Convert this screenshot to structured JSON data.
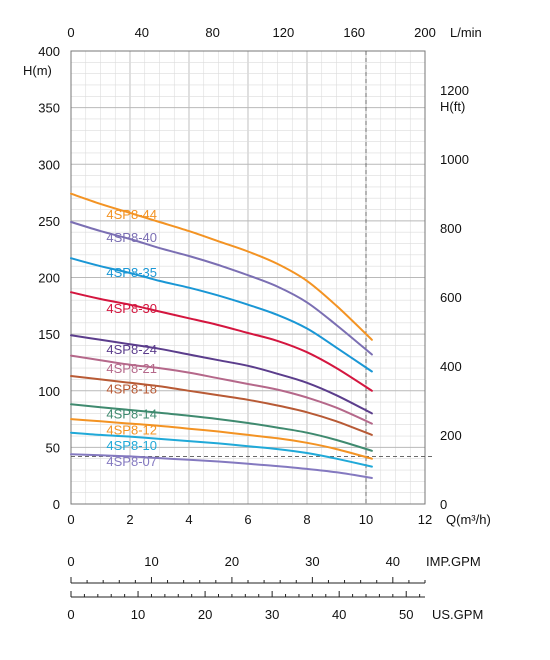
{
  "chart_data": {
    "type": "line",
    "x_axis": {
      "label": "Q(m³/h)",
      "range": [
        0,
        12
      ],
      "ticks": [
        "0",
        "2",
        "4",
        "6",
        "8",
        "10",
        "12"
      ]
    },
    "y_axis_left": {
      "label": "H(m)",
      "range": [
        0,
        400
      ],
      "ticks": [
        "0",
        "50",
        "100",
        "150",
        "200",
        "250",
        "300",
        "350",
        "400"
      ]
    },
    "top_axis": {
      "label": "L/min",
      "range": [
        0,
        200
      ],
      "ticks": [
        "0",
        "40",
        "80",
        "120",
        "160",
        "200"
      ]
    },
    "y_axis_right": {
      "label": "H(ft)",
      "range": [
        0,
        1312.3
      ],
      "ticks": [
        "0",
        "200",
        "400",
        "600",
        "800",
        "1000",
        "1200"
      ]
    },
    "imp_gpm_axis": {
      "label": "IMP.GPM",
      "range": [
        0,
        44
      ],
      "ticks": [
        "0",
        "10",
        "20",
        "30",
        "40"
      ]
    },
    "us_gpm_axis": {
      "label": "US.GPM",
      "range": [
        0,
        52.8
      ],
      "ticks": [
        "0",
        "10",
        "20",
        "30",
        "40",
        "50"
      ]
    },
    "grid": true,
    "reference_lines": {
      "x": 10,
      "y": 42
    },
    "x": [
      0,
      1,
      2,
      3,
      4,
      5,
      6,
      7,
      8,
      9,
      10.2
    ],
    "series": [
      {
        "name": "4SP8-44",
        "color": "#f39323",
        "label_x": 1.2,
        "label_y": 255,
        "values": [
          274,
          265,
          257,
          249,
          241,
          232,
          223,
          212,
          197,
          175,
          145
        ]
      },
      {
        "name": "4SP8-40",
        "color": "#7b6fb3",
        "label_x": 1.2,
        "label_y": 235,
        "values": [
          249,
          241,
          234,
          226,
          219,
          211,
          202,
          192,
          178,
          158,
          132
        ]
      },
      {
        "name": "4SP8-35",
        "color": "#1a97d5",
        "label_x": 1.2,
        "label_y": 204,
        "values": [
          217,
          210,
          204,
          197,
          191,
          184,
          176,
          167,
          155,
          138,
          117
        ]
      },
      {
        "name": "4SP8-30",
        "color": "#d4163f",
        "label_x": 1.2,
        "label_y": 172,
        "values": [
          187,
          181,
          176,
          170,
          164,
          158,
          151,
          144,
          134,
          120,
          100
        ]
      },
      {
        "name": "4SP8-24",
        "color": "#5b3d8c",
        "label_x": 1.2,
        "label_y": 136,
        "values": [
          149,
          145,
          141,
          137,
          132,
          127,
          122,
          115,
          107,
          96,
          80
        ]
      },
      {
        "name": "4SP8-21",
        "color": "#b5688a",
        "label_x": 1.2,
        "label_y": 119,
        "values": [
          131,
          127,
          123,
          120,
          116,
          111,
          106,
          101,
          94,
          85,
          71
        ]
      },
      {
        "name": "4SP8-18",
        "color": "#b85a35",
        "label_x": 1.2,
        "label_y": 101,
        "values": [
          113,
          110,
          107,
          104,
          100,
          96,
          92,
          87,
          81,
          73,
          61
        ]
      },
      {
        "name": "4SP8-14",
        "color": "#3f8a6f",
        "label_x": 1.2,
        "label_y": 79,
        "values": [
          88,
          85.5,
          83,
          80.5,
          78,
          75,
          71.5,
          67.5,
          63,
          56.5,
          47
        ]
      },
      {
        "name": "4SP8-12",
        "color": "#f39323",
        "label_x": 1.2,
        "label_y": 65,
        "values": [
          75,
          73,
          71,
          69,
          66.5,
          64,
          61,
          58,
          54,
          48.5,
          40
        ]
      },
      {
        "name": "4SP8-10",
        "color": "#20a9d8",
        "label_x": 1.2,
        "label_y": 51,
        "values": [
          63,
          61,
          59.5,
          57.5,
          55.5,
          53.5,
          51,
          48.5,
          45,
          40,
          33
        ]
      },
      {
        "name": "4SP8-07",
        "color": "#8479c0",
        "label_x": 1.2,
        "label_y": 37,
        "values": [
          44,
          43,
          42,
          40.5,
          39,
          37.5,
          35.5,
          33.5,
          31,
          28,
          23
        ]
      }
    ]
  }
}
